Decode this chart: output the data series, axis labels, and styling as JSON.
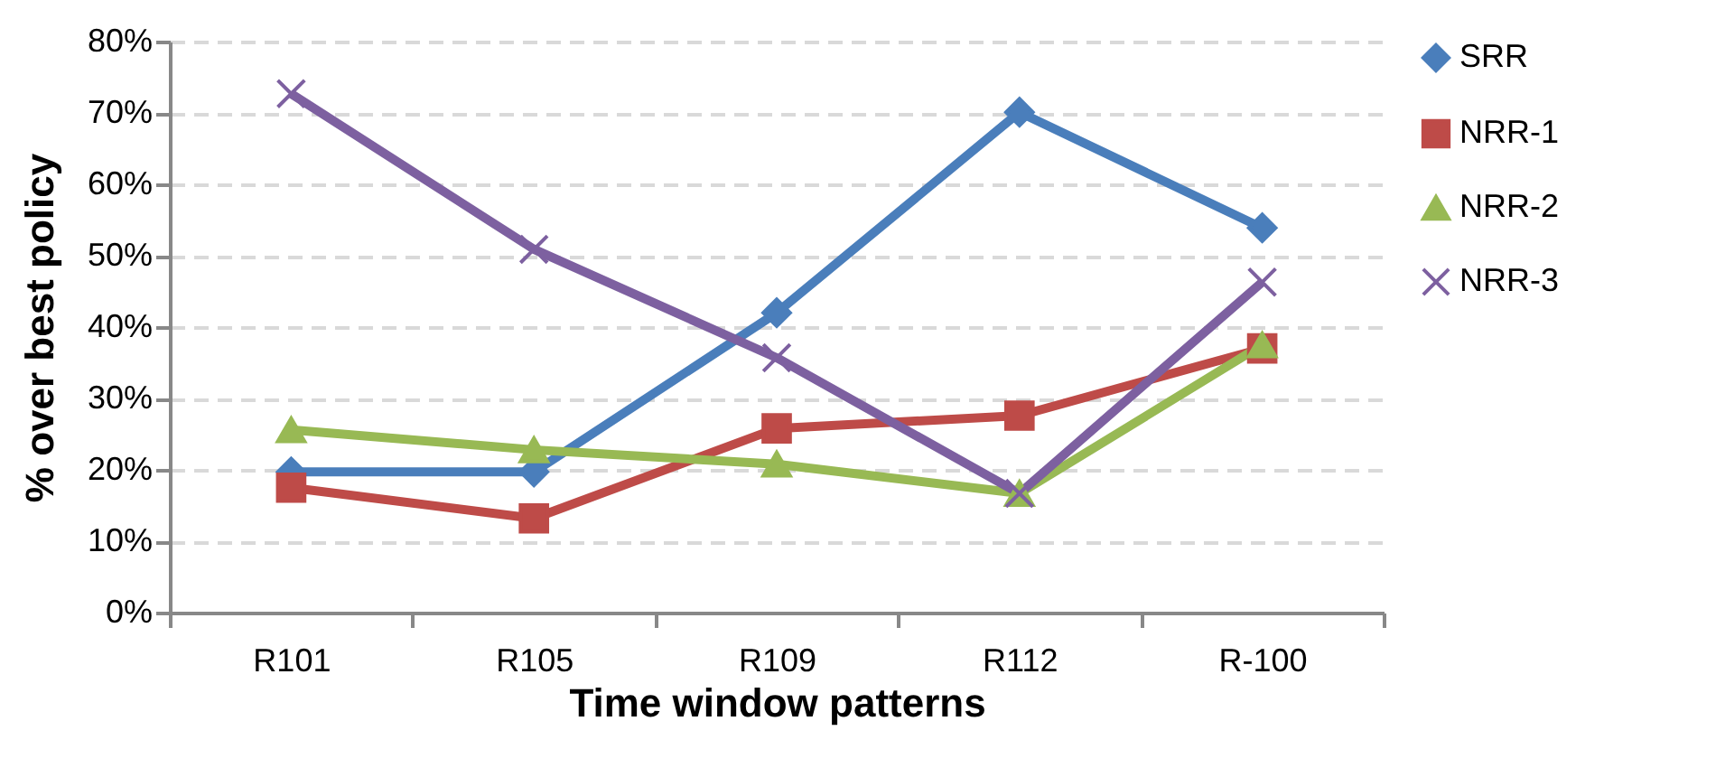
{
  "chart_data": {
    "type": "line",
    "xlabel": "Time window patterns",
    "ylabel": "% over best policy",
    "categories": [
      "R101",
      "R105",
      "R109",
      "R112",
      "R-100"
    ],
    "series": [
      {
        "name": "SRR",
        "color": "#4a7ebb",
        "marker": "diamond",
        "values": [
          19.7,
          19.7,
          42.0,
          70.1,
          53.9
        ]
      },
      {
        "name": "NRR-1",
        "color": "#be4b48",
        "marker": "square",
        "values": [
          17.5,
          13.2,
          25.8,
          27.6,
          37.0
        ]
      },
      {
        "name": "NRR-2",
        "color": "#98b954",
        "marker": "triangle",
        "values": [
          25.6,
          22.8,
          20.8,
          16.7,
          37.5
        ]
      },
      {
        "name": "NRR-3",
        "color": "#7d60a0",
        "marker": "cross",
        "values": [
          72.7,
          50.9,
          35.7,
          16.7,
          46.3
        ]
      }
    ],
    "ylim": [
      0,
      80
    ],
    "yticks": [
      {
        "value": 0,
        "label": "0%"
      },
      {
        "value": 10,
        "label": "10%"
      },
      {
        "value": 20,
        "label": "20%"
      },
      {
        "value": 30,
        "label": "30%"
      },
      {
        "value": 40,
        "label": "40%"
      },
      {
        "value": 50,
        "label": "50%"
      },
      {
        "value": 60,
        "label": "60%"
      },
      {
        "value": 70,
        "label": "70%"
      },
      {
        "value": 80,
        "label": "80%"
      }
    ],
    "grid": "y",
    "legend": "right",
    "line_style": "solid"
  }
}
